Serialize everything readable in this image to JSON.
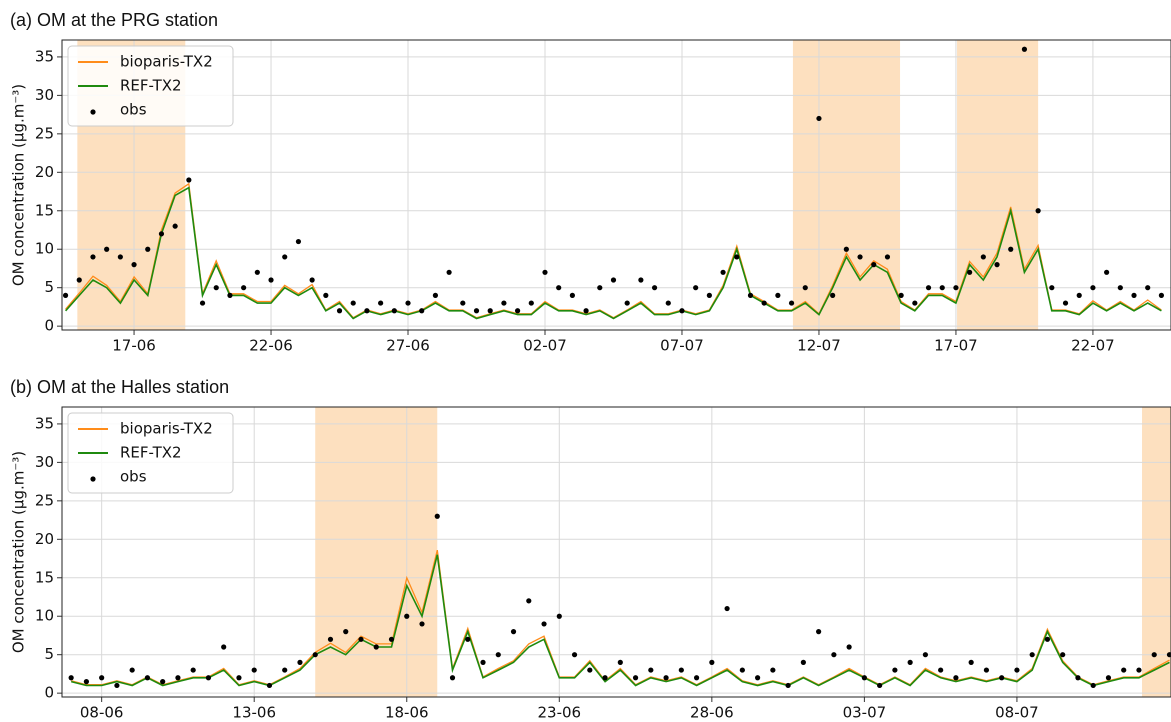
{
  "chart_data": [
    {
      "type": "line",
      "title": "(a) OM at the PRG station",
      "ylabel": "OM concentration (μg.m⁻³)",
      "x": [
        14.5,
        15,
        15.5,
        16,
        16.5,
        17,
        17.5,
        18,
        18.5,
        19,
        19.5,
        20,
        20.5,
        21,
        21.5,
        22,
        22.5,
        23,
        23.5,
        24,
        24.5,
        25,
        25.5,
        26,
        26.5,
        27,
        27.5,
        28,
        28.5,
        29,
        29.5,
        30,
        30.5,
        31,
        31.5,
        32,
        32.5,
        33,
        33.5,
        34,
        34.5,
        35,
        35.5,
        36,
        36.5,
        37,
        37.5,
        38,
        38.5,
        39,
        39.5,
        40,
        40.5,
        41,
        41.5,
        42,
        42.5,
        43,
        43.5,
        44,
        44.5,
        45,
        45.5,
        46,
        46.5,
        47,
        47.5,
        48,
        48.5,
        49,
        49.5,
        50,
        50.5,
        51,
        51.5,
        52,
        52.5,
        53,
        53.5,
        54,
        54.5
      ],
      "series": [
        {
          "name": "bioparis-TX2",
          "color": "#ff8c1a",
          "style": "line",
          "values": [
            2.2,
            4.3,
            6.5,
            5.3,
            3.2,
            6.4,
            4.2,
            12.5,
            17.3,
            18.5,
            4.2,
            8.5,
            4.2,
            4.2,
            3.2,
            3.2,
            5.3,
            4.2,
            5.4,
            2.1,
            3.2,
            1.1,
            2.1,
            1.6,
            2.1,
            1.6,
            2.1,
            3.2,
            2.1,
            2.1,
            1.1,
            1.6,
            2.1,
            1.6,
            1.6,
            3.2,
            2.1,
            2.1,
            1.6,
            2.1,
            1.1,
            2.1,
            3.2,
            1.6,
            1.6,
            2.1,
            1.6,
            2.1,
            5.3,
            10.4,
            4.2,
            3.2,
            2.1,
            2.1,
            3.2,
            1.6,
            5.3,
            9.5,
            6.4,
            8.5,
            7.4,
            3.2,
            2.1,
            4.2,
            4.2,
            3.2,
            8.4,
            6.4,
            9.5,
            15.5,
            7.4,
            10.5,
            2.1,
            2.1,
            1.6,
            3.3,
            2.1,
            3.2,
            2.1,
            3.4,
            2.1
          ]
        },
        {
          "name": "REF-TX2",
          "color": "#1f8a0f",
          "style": "line",
          "values": [
            2,
            4,
            6,
            5,
            3,
            6,
            4,
            12,
            17,
            18,
            4,
            8,
            4,
            4,
            3,
            3,
            5,
            4,
            5,
            2,
            3,
            1,
            2,
            1.5,
            2,
            1.5,
            2,
            3,
            2,
            2,
            1,
            1.5,
            2,
            1.5,
            1.5,
            3,
            2,
            2,
            1.5,
            2,
            1,
            2,
            3,
            1.5,
            1.5,
            2,
            1.5,
            2,
            5,
            10,
            4,
            3,
            2,
            2,
            3,
            1.5,
            5,
            9,
            6,
            8,
            7,
            3,
            2,
            4,
            4,
            3,
            8,
            6,
            9,
            15,
            7,
            10,
            2,
            2,
            1.5,
            3,
            2,
            3,
            2,
            3,
            2
          ]
        },
        {
          "name": "obs",
          "color": "#000000",
          "style": "points",
          "values": [
            4,
            6,
            9,
            10,
            9,
            8,
            10,
            12,
            13,
            19,
            3,
            5,
            4,
            5,
            7,
            6,
            9,
            11,
            6,
            4,
            2,
            3,
            2,
            3,
            2,
            3,
            2,
            4,
            7,
            3,
            2,
            2,
            3,
            2,
            3,
            7,
            5,
            4,
            2,
            5,
            6,
            3,
            6,
            5,
            3,
            2,
            5,
            4,
            7,
            9,
            4,
            3,
            4,
            3,
            5,
            27,
            4,
            10,
            9,
            8,
            9,
            4,
            3,
            5,
            5,
            5,
            7,
            9,
            8,
            10,
            36,
            15,
            5,
            3,
            4,
            5,
            7,
            5,
            4,
            5,
            4
          ]
        }
      ],
      "spans": [
        [
          14.93,
          18.87
        ],
        [
          41.05,
          44.96
        ],
        [
          47.04,
          50.0
        ]
      ],
      "span_color": "#fde0bf",
      "xlim": [
        14.37,
        54.85
      ],
      "ylim": [
        -0.5,
        37.2
      ],
      "xticks": [
        {
          "value": 17,
          "label": "17-06"
        },
        {
          "value": 22,
          "label": "22-06"
        },
        {
          "value": 27,
          "label": "27-06"
        },
        {
          "value": 32,
          "label": "02-07"
        },
        {
          "value": 37,
          "label": "07-07"
        },
        {
          "value": 42,
          "label": "12-07"
        },
        {
          "value": 47,
          "label": "17-07"
        },
        {
          "value": 52,
          "label": "22-07"
        }
      ],
      "yticks": [
        0,
        5,
        10,
        15,
        20,
        25,
        30,
        35
      ],
      "grid": true,
      "legend": "upper left"
    },
    {
      "type": "line",
      "title": "(b) OM at the Halles station",
      "ylabel": "OM concentration (μg.m⁻³)",
      "x": [
        7,
        7.5,
        8,
        8.5,
        9,
        9.5,
        10,
        10.5,
        11,
        11.5,
        12,
        12.5,
        13,
        13.5,
        14,
        14.5,
        15,
        15.5,
        16,
        16.5,
        17,
        17.5,
        18,
        18.5,
        19,
        19.5,
        20,
        20.5,
        21,
        21.5,
        22,
        22.5,
        23,
        23.5,
        24,
        24.5,
        25,
        25.5,
        26,
        26.5,
        27,
        27.5,
        28,
        28.5,
        29,
        29.5,
        30,
        30.5,
        31,
        31.5,
        32,
        32.5,
        33,
        33.5,
        34,
        34.5,
        35,
        35.5,
        36,
        36.5,
        37,
        37.5,
        38,
        38.5,
        39,
        39.5,
        40,
        40.5,
        41,
        41.5,
        42,
        42.5,
        43
      ],
      "series": [
        {
          "name": "bioparis-TX2",
          "color": "#ff8c1a",
          "style": "line",
          "values": [
            1.6,
            1.1,
            1.1,
            1.6,
            1.1,
            2.1,
            1.1,
            1.6,
            2.1,
            2.1,
            3.2,
            1.1,
            1.6,
            1.1,
            2.1,
            3.2,
            5.3,
            6.5,
            5.3,
            7.4,
            6.4,
            6.4,
            15,
            10.5,
            18.6,
            3.2,
            8.4,
            2.1,
            3.2,
            4.2,
            6.4,
            7.4,
            2.1,
            2.1,
            4.2,
            1.6,
            3.2,
            1.1,
            2.1,
            1.6,
            2.1,
            1.1,
            2.1,
            3.2,
            1.6,
            1.1,
            1.6,
            1.1,
            2.1,
            1.1,
            2.1,
            3.2,
            2.1,
            1.1,
            2.1,
            1.1,
            3.2,
            2.1,
            1.6,
            2.1,
            1.6,
            2.1,
            1.6,
            3.2,
            8.3,
            4.2,
            2.1,
            1.1,
            1.6,
            2.1,
            2.1,
            3.2,
            4.3
          ]
        },
        {
          "name": "REF-TX2",
          "color": "#1f8a0f",
          "style": "line",
          "values": [
            1.5,
            1,
            1,
            1.5,
            1,
            2,
            1,
            1.5,
            2,
            2,
            3,
            1,
            1.5,
            1,
            2,
            3,
            5,
            6,
            5,
            7,
            6,
            6,
            14,
            10,
            18,
            3,
            8,
            2,
            3,
            4,
            6,
            7,
            2,
            2,
            4,
            1.5,
            3,
            1,
            2,
            1.5,
            2,
            1,
            2,
            3,
            1.5,
            1,
            1.5,
            1,
            2,
            1,
            2,
            3,
            2,
            1,
            2,
            1,
            3,
            2,
            1.5,
            2,
            1.5,
            2,
            1.5,
            3,
            8,
            4,
            2,
            1,
            1.5,
            2,
            2,
            3,
            4
          ]
        },
        {
          "name": "obs",
          "color": "#000000",
          "style": "points",
          "values": [
            2,
            1.5,
            2,
            1,
            3,
            2,
            1.5,
            2,
            3,
            2,
            6,
            2,
            3,
            1,
            3,
            4,
            5,
            7,
            8,
            7,
            6,
            7,
            10,
            9,
            23,
            2,
            7,
            4,
            5,
            8,
            12,
            9,
            10,
            5,
            3,
            2,
            4,
            2,
            3,
            2,
            3,
            2,
            4,
            11,
            3,
            2,
            3,
            1,
            4,
            8,
            5,
            6,
            2,
            1,
            3,
            4,
            5,
            3,
            2,
            4,
            3,
            2,
            3,
            5,
            7,
            5,
            2,
            1,
            2,
            3,
            3,
            5,
            5
          ]
        }
      ],
      "spans": [
        [
          15.0,
          19.0
        ],
        [
          42.1,
          43.05
        ]
      ],
      "span_color": "#fde0bf",
      "xlim": [
        6.7,
        43.05
      ],
      "ylim": [
        -0.5,
        37.2
      ],
      "xticks": [
        {
          "value": 8,
          "label": "08-06"
        },
        {
          "value": 13,
          "label": "13-06"
        },
        {
          "value": 18,
          "label": "18-06"
        },
        {
          "value": 23,
          "label": "23-06"
        },
        {
          "value": 28,
          "label": "28-06"
        },
        {
          "value": 33,
          "label": "03-07"
        },
        {
          "value": 38,
          "label": "08-07"
        }
      ],
      "yticks": [
        0,
        5,
        10,
        15,
        20,
        25,
        30,
        35
      ],
      "grid": true,
      "legend": "upper left"
    }
  ]
}
